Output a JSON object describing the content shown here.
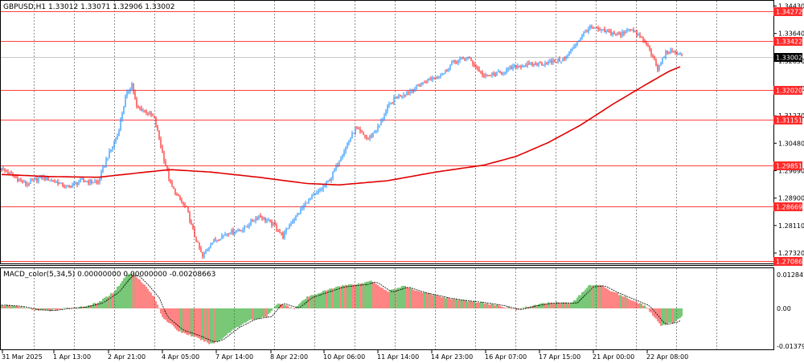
{
  "main_title": "GBPUSD,H1  1.33012 1.33071 1.32906 1.33002",
  "macd_title": "MACD_color(5,34,5) 0.00000000 0.00000000 -0.00208663",
  "colors": {
    "bull": "#1e90ff",
    "bear": "#ff2020",
    "ma": "#e00000",
    "level": "#ff4040",
    "hist_up": "#0a9a0a",
    "hist_down": "#ff1f1f",
    "grid": "#909090",
    "text": "#000000"
  },
  "price_axis": [
    "1.34430",
    "1.33640",
    "1.32850",
    "1.32060",
    "1.31270",
    "1.30480",
    "1.29690",
    "1.28900",
    "1.28110",
    "1.27320"
  ],
  "levels": [
    "1.34272",
    "1.33422",
    "1.32020",
    "1.31151",
    "1.29851",
    "1.28669",
    "1.27086"
  ],
  "current_price": "1.33002",
  "macd_axis": [
    "0.0128479",
    "0.00",
    "-0.0137932"
  ],
  "time_axis": [
    "31 Mar 2025",
    "1 Apr 13:00",
    "2 Apr 21:00",
    "4 Apr 05:00",
    "7 Apr 14:00",
    "8 Apr 22:00",
    "10 Apr 06:00",
    "11 Apr 14:00",
    "14 Apr 23:00",
    "16 Apr 07:00",
    "17 Apr 15:00",
    "21 Apr 00:00",
    "22 Apr 08:00"
  ],
  "chart_data": {
    "type": "candlestick",
    "symbol": "GBPUSD",
    "timeframe": "H1",
    "ohlc_last": {
      "open": 1.33012,
      "high": 1.33071,
      "low": 1.32906,
      "close": 1.33002
    },
    "price_range": [
      1.27,
      1.346
    ],
    "close_path": [
      [
        0,
        1.2975
      ],
      [
        10,
        1.2945
      ],
      [
        15,
        1.293
      ],
      [
        25,
        1.295
      ],
      [
        35,
        1.2935
      ],
      [
        40,
        1.292
      ],
      [
        50,
        1.294
      ],
      [
        60,
        1.2935
      ],
      [
        65,
        1.3
      ],
      [
        72,
        1.307
      ],
      [
        77,
        1.318
      ],
      [
        81,
        1.322
      ],
      [
        84,
        1.315
      ],
      [
        90,
        1.314
      ],
      [
        95,
        1.312
      ],
      [
        100,
        1.302
      ],
      [
        105,
        1.293
      ],
      [
        110,
        1.289
      ],
      [
        115,
        1.286
      ],
      [
        120,
        1.278
      ],
      [
        125,
        1.272
      ],
      [
        130,
        1.276
      ],
      [
        140,
        1.279
      ],
      [
        150,
        1.28
      ],
      [
        160,
        1.284
      ],
      [
        170,
        1.281
      ],
      [
        175,
        1.278
      ],
      [
        180,
        1.282
      ],
      [
        190,
        1.288
      ],
      [
        200,
        1.292
      ],
      [
        205,
        1.295
      ],
      [
        210,
        1.3
      ],
      [
        220,
        1.309
      ],
      [
        228,
        1.306
      ],
      [
        235,
        1.31
      ],
      [
        240,
        1.315
      ],
      [
        245,
        1.318
      ],
      [
        255,
        1.32
      ],
      [
        265,
        1.323
      ],
      [
        275,
        1.325
      ],
      [
        280,
        1.328
      ],
      [
        290,
        1.3295
      ],
      [
        300,
        1.324
      ],
      [
        310,
        1.325
      ],
      [
        320,
        1.327
      ],
      [
        330,
        1.3275
      ],
      [
        340,
        1.328
      ],
      [
        350,
        1.329
      ],
      [
        358,
        1.334
      ],
      [
        365,
        1.338
      ],
      [
        375,
        1.337
      ],
      [
        385,
        1.336
      ],
      [
        390,
        1.338
      ],
      [
        398,
        1.335
      ],
      [
        403,
        1.332
      ],
      [
        408,
        1.326
      ],
      [
        413,
        1.331
      ],
      [
        420,
        1.331
      ],
      [
        423,
        1.33
      ]
    ],
    "ma_path": [
      [
        0,
        1.2958
      ],
      [
        30,
        1.2952
      ],
      [
        60,
        1.295
      ],
      [
        90,
        1.2965
      ],
      [
        105,
        1.2972
      ],
      [
        130,
        1.2965
      ],
      [
        160,
        1.295
      ],
      [
        190,
        1.2932
      ],
      [
        210,
        1.2928
      ],
      [
        240,
        1.294
      ],
      [
        270,
        1.2965
      ],
      [
        300,
        1.2985
      ],
      [
        320,
        1.301
      ],
      [
        340,
        1.305
      ],
      [
        360,
        1.31
      ],
      [
        380,
        1.316
      ],
      [
        400,
        1.3215
      ],
      [
        415,
        1.3255
      ],
      [
        423,
        1.327
      ]
    ],
    "macd_range": [
      -0.0137932,
      0.0128479
    ],
    "macd_path": [
      [
        0,
        0.0012
      ],
      [
        10,
        0.0008
      ],
      [
        20,
        -0.0005
      ],
      [
        30,
        -0.0008
      ],
      [
        40,
        0.0
      ],
      [
        50,
        0.0005
      ],
      [
        60,
        0.002
      ],
      [
        70,
        0.006
      ],
      [
        78,
        0.012
      ],
      [
        82,
        0.0125
      ],
      [
        88,
        0.009
      ],
      [
        95,
        0.004
      ],
      [
        100,
        -0.003
      ],
      [
        110,
        -0.008
      ],
      [
        120,
        -0.01
      ],
      [
        130,
        -0.0125
      ],
      [
        135,
        -0.0115
      ],
      [
        145,
        -0.007
      ],
      [
        155,
        -0.004
      ],
      [
        165,
        -0.003
      ],
      [
        172,
        0.002
      ],
      [
        182,
        0.0
      ],
      [
        190,
        0.004
      ],
      [
        200,
        0.006
      ],
      [
        210,
        0.008
      ],
      [
        225,
        0.009
      ],
      [
        230,
        0.01
      ],
      [
        240,
        0.006
      ],
      [
        250,
        0.008
      ],
      [
        260,
        0.006
      ],
      [
        275,
        0.004
      ],
      [
        285,
        0.003
      ],
      [
        300,
        0.002
      ],
      [
        310,
        0.001
      ],
      [
        320,
        -0.0005
      ],
      [
        330,
        0.001
      ],
      [
        340,
        0.002
      ],
      [
        355,
        0.002
      ],
      [
        365,
        0.008
      ],
      [
        372,
        0.0085
      ],
      [
        380,
        0.006
      ],
      [
        390,
        0.0035
      ],
      [
        400,
        0.001
      ],
      [
        410,
        -0.006
      ],
      [
        418,
        -0.005
      ],
      [
        423,
        -0.003
      ]
    ],
    "signal_offset": 3
  }
}
